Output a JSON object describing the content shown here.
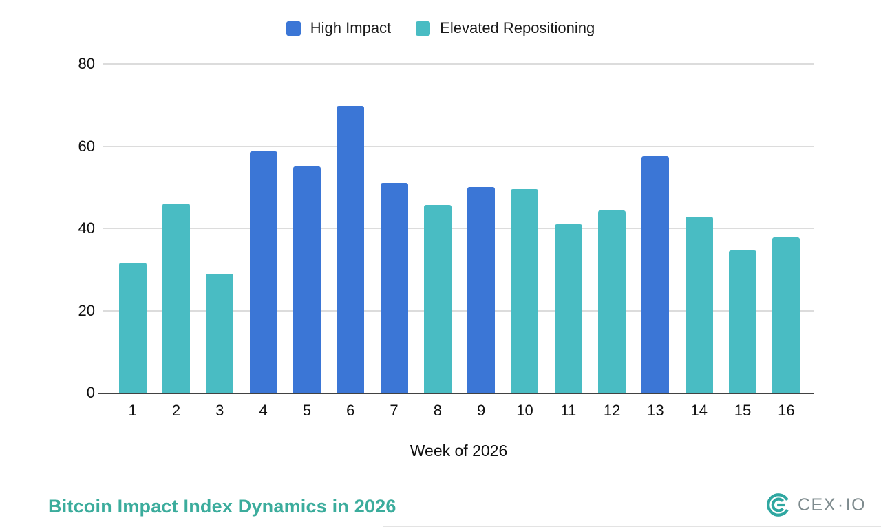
{
  "title": "Bitcoin Impact Index Dynamics in 2026",
  "title_color": "#3bac9c",
  "brand": {
    "logo_text_main": "CEX",
    "logo_separator": "·",
    "logo_text_secondary": "IO",
    "logo_icon_color": "#2fa7a1",
    "logo_text_color": "#7e8b8e"
  },
  "chart_data": {
    "type": "bar",
    "title": "Bitcoin Impact Index Dynamics in 2026",
    "xlabel": "Week of 2026",
    "ylabel": "",
    "ylim": [
      0,
      80
    ],
    "yticks": [
      0,
      20,
      40,
      60,
      80
    ],
    "grid": true,
    "legend_position": "top-center",
    "categories": [
      "1",
      "2",
      "3",
      "4",
      "5",
      "6",
      "7",
      "8",
      "9",
      "10",
      "11",
      "12",
      "13",
      "14",
      "15",
      "16"
    ],
    "series": [
      {
        "name": "High Impact",
        "color": "#3b76d6"
      },
      {
        "name": "Elevated Repositioning",
        "color": "#49bcc3"
      }
    ],
    "bars": [
      {
        "week": "1",
        "series": "Elevated Repositioning",
        "value": 31.7
      },
      {
        "week": "2",
        "series": "Elevated Repositioning",
        "value": 46.0
      },
      {
        "week": "3",
        "series": "Elevated Repositioning",
        "value": 28.9
      },
      {
        "week": "4",
        "series": "High Impact",
        "value": 58.8
      },
      {
        "week": "5",
        "series": "High Impact",
        "value": 55.0
      },
      {
        "week": "6",
        "series": "High Impact",
        "value": 69.8
      },
      {
        "week": "7",
        "series": "High Impact",
        "value": 51.0
      },
      {
        "week": "8",
        "series": "Elevated Repositioning",
        "value": 45.7
      },
      {
        "week": "9",
        "series": "High Impact",
        "value": 50.0
      },
      {
        "week": "10",
        "series": "Elevated Repositioning",
        "value": 49.5
      },
      {
        "week": "11",
        "series": "Elevated Repositioning",
        "value": 41.0
      },
      {
        "week": "12",
        "series": "Elevated Repositioning",
        "value": 44.4
      },
      {
        "week": "13",
        "series": "High Impact",
        "value": 57.6
      },
      {
        "week": "14",
        "series": "Elevated Repositioning",
        "value": 42.8
      },
      {
        "week": "15",
        "series": "Elevated Repositioning",
        "value": 34.7
      },
      {
        "week": "16",
        "series": "Elevated Repositioning",
        "value": 37.9
      }
    ]
  }
}
